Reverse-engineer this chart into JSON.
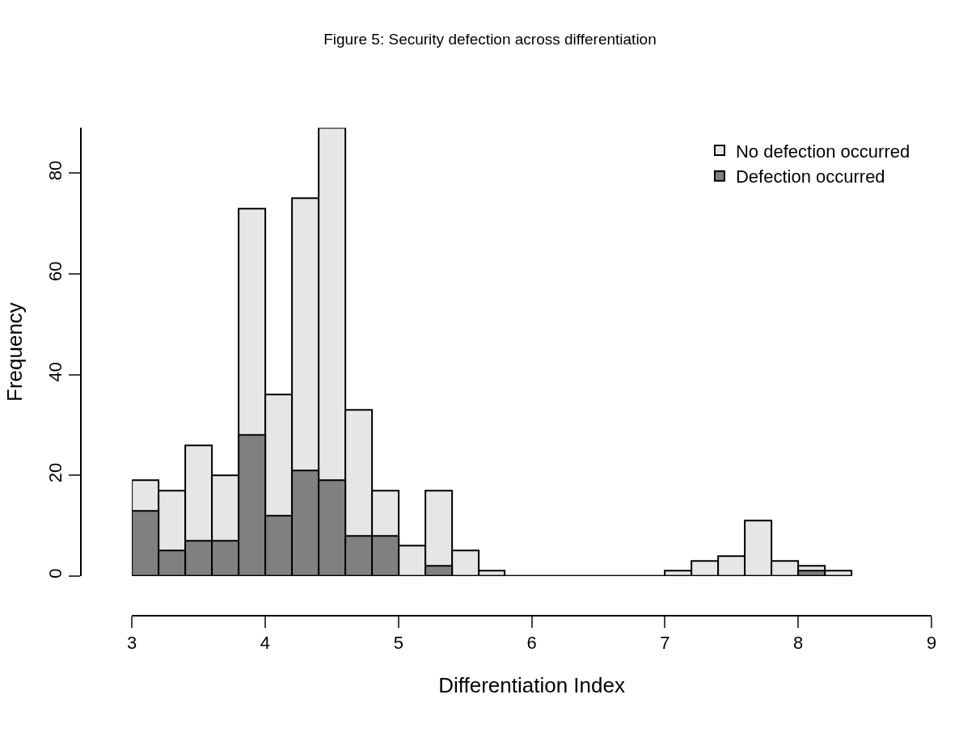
{
  "chart_data": {
    "type": "histogram",
    "title": "Figure 5: Security defection across differentiation",
    "xlabel": "Differentiation Index",
    "ylabel": "Frequency",
    "bins": [
      3.0,
      3.2,
      3.4,
      3.6,
      3.8,
      4.0,
      4.2,
      4.4,
      4.6,
      4.8,
      5.0,
      5.2,
      5.4,
      5.6,
      5.8,
      6.0,
      6.2,
      6.4,
      6.6,
      6.8,
      7.0,
      7.2,
      7.4,
      7.6,
      7.8,
      8.0,
      8.2,
      8.4
    ],
    "series": [
      {
        "name": "No defection occurred",
        "color": "#e6e6e6",
        "values": [
          19,
          17,
          26,
          20,
          73,
          36,
          75,
          89,
          33,
          17,
          6,
          17,
          5,
          1,
          0,
          0,
          0,
          0,
          0,
          0,
          1,
          3,
          4,
          11,
          3,
          2,
          1
        ]
      },
      {
        "name": "Defection occurred",
        "color": "#808080",
        "values": [
          13,
          5,
          7,
          7,
          28,
          12,
          21,
          19,
          8,
          8,
          0,
          2,
          0,
          0,
          0,
          0,
          0,
          0,
          0,
          0,
          0,
          0,
          0,
          0,
          0,
          1,
          0
        ]
      }
    ],
    "xlim": [
      3,
      9
    ],
    "xticks": [
      3,
      4,
      5,
      6,
      7,
      8,
      9
    ],
    "ylim": [
      0,
      89
    ],
    "yticks": [
      0,
      20,
      40,
      60,
      80
    ],
    "grid": false,
    "legend": "top right"
  }
}
